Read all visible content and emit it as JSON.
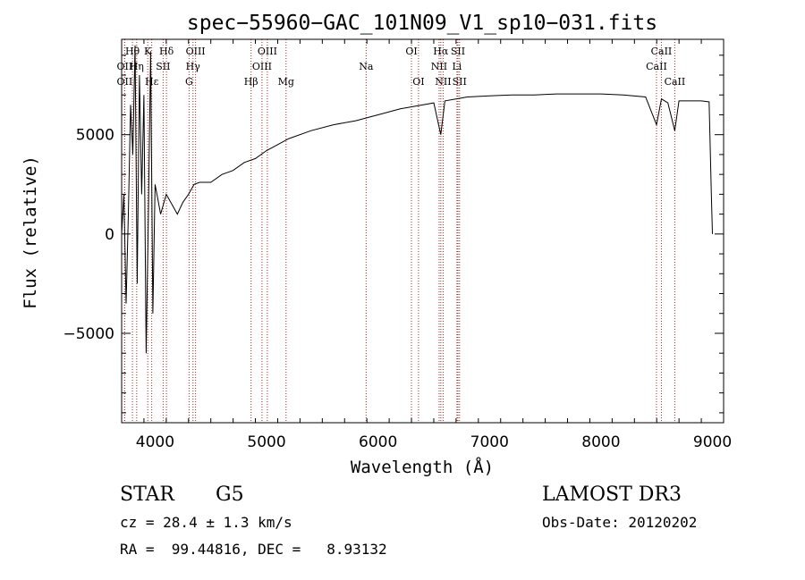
{
  "chart_data": {
    "type": "line",
    "title": "spec−55960−GAC_101N09_V1_sp10−031.fits",
    "xlabel": "Wavelength (Å)",
    "ylabel": "Flux (relative)",
    "xlim": [
      3700,
      9100
    ],
    "ylim": [
      -9500,
      9800
    ],
    "xticks": [
      4000,
      5000,
      6000,
      7000,
      8000,
      9000
    ],
    "xtick_labels": [
      "4000",
      "5000",
      "6000",
      "7000",
      "8000",
      "9000"
    ],
    "yticks": [
      -5000,
      0,
      5000
    ],
    "ytick_labels": [
      "−5000",
      "0",
      "5000"
    ],
    "series": [
      {
        "name": "spectrum",
        "x": [
          3700,
          3720,
          3740,
          3760,
          3780,
          3800,
          3820,
          3840,
          3860,
          3880,
          3900,
          3920,
          3940,
          3960,
          3980,
          4000,
          4050,
          4100,
          4150,
          4200,
          4250,
          4300,
          4350,
          4400,
          4500,
          4600,
          4700,
          4800,
          4900,
          5000,
          5100,
          5200,
          5400,
          5600,
          5800,
          6000,
          6200,
          6400,
          6500,
          6563,
          6600,
          6700,
          6800,
          7000,
          7200,
          7400,
          7600,
          7800,
          8000,
          8200,
          8400,
          8498,
          8542,
          8600,
          8662,
          8700,
          8800,
          8900,
          8970,
          8990,
          9000
        ],
        "y": [
          0,
          2000,
          -3500,
          1000,
          6500,
          4000,
          9500,
          -2500,
          8000,
          2000,
          7000,
          -6000,
          1000,
          9200,
          -4000,
          2500,
          1000,
          2000,
          1500,
          1000,
          1600,
          2000,
          2500,
          2600,
          2600,
          3000,
          3200,
          3600,
          3800,
          4200,
          4500,
          4800,
          5200,
          5500,
          5700,
          6000,
          6300,
          6500,
          6600,
          5000,
          6700,
          6800,
          6900,
          6950,
          7000,
          7000,
          7050,
          7050,
          7050,
          7000,
          6900,
          5500,
          6800,
          6600,
          5200,
          6700,
          6700,
          6700,
          6650,
          2000,
          0
        ]
      }
    ],
    "lines": [
      {
        "name": "Hθ",
        "wavelength": 3797,
        "row": 1
      },
      {
        "name": "OII",
        "wavelength": 3727,
        "row": 2
      },
      {
        "name": "OII",
        "wavelength": 3727,
        "row": 3
      },
      {
        "name": "K",
        "wavelength": 3934,
        "row": 1
      },
      {
        "name": "Hη",
        "wavelength": 3835,
        "row": 2
      },
      {
        "name": "SII",
        "wavelength": 4072,
        "row": 2
      },
      {
        "name": "Hε",
        "wavelength": 3970,
        "row": 3
      },
      {
        "name": "Hδ",
        "wavelength": 4102,
        "row": 1
      },
      {
        "name": "OIII",
        "wavelength": 4363,
        "row": 1
      },
      {
        "name": "Hγ",
        "wavelength": 4340,
        "row": 2
      },
      {
        "name": "G",
        "wavelength": 4305,
        "row": 3
      },
      {
        "name": "Hβ",
        "wavelength": 4861,
        "row": 3
      },
      {
        "name": "OIII",
        "wavelength": 5007,
        "row": 1
      },
      {
        "name": "OIII",
        "wavelength": 4959,
        "row": 2
      },
      {
        "name": "Mg",
        "wavelength": 5175,
        "row": 3
      },
      {
        "name": "Na",
        "wavelength": 5893,
        "row": 2
      },
      {
        "name": "OI",
        "wavelength": 6300,
        "row": 1
      },
      {
        "name": "OI",
        "wavelength": 6363,
        "row": 3
      },
      {
        "name": "Hα",
        "wavelength": 6563,
        "row": 1
      },
      {
        "name": "NII",
        "wavelength": 6548,
        "row": 2
      },
      {
        "name": "NII",
        "wavelength": 6584,
        "row": 3
      },
      {
        "name": "SII",
        "wavelength": 6717,
        "row": 1
      },
      {
        "name": "Li",
        "wavelength": 6708,
        "row": 2
      },
      {
        "name": "SII",
        "wavelength": 6731,
        "row": 3
      },
      {
        "name": "CaII",
        "wavelength": 8542,
        "row": 1
      },
      {
        "name": "CaII",
        "wavelength": 8498,
        "row": 2
      },
      {
        "name": "CaII",
        "wavelength": 8662,
        "row": 3
      }
    ],
    "line_color": "#b22222",
    "spectrum_color": "#000000"
  },
  "info": {
    "class": "STAR",
    "subclass": "G5",
    "survey": "LAMOST DR3",
    "cz": "cz = 28.4 ± 1.3 km/s",
    "obs_date": "Obs-Date: 20120202",
    "coords": "RA =  99.44816, DEC =   8.93132"
  }
}
